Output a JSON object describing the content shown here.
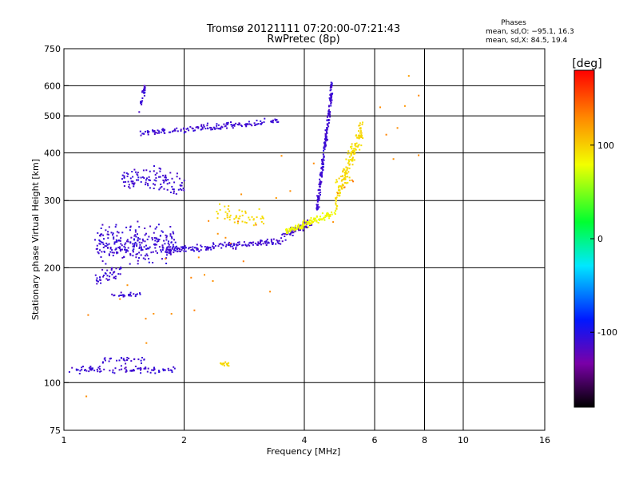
{
  "chart_data": {
    "type": "scatter",
    "title": "Tromsø 20121111 07:20:00-07:21:43",
    "subtitle": "RwPretec (8p)",
    "xlabel": "Frequency [MHz]",
    "ylabel": "Stationary phase Virtual Height [km]",
    "x_scale": "log",
    "y_scale": "log",
    "xlim": [
      1,
      16
    ],
    "ylim": [
      75,
      750
    ],
    "x_ticks": [
      1,
      2,
      4,
      6,
      8,
      10,
      16
    ],
    "y_ticks": [
      75,
      100,
      200,
      300,
      400,
      500,
      600,
      750
    ],
    "grid": true,
    "phase_stats": {
      "title": "Phases",
      "line_o": "mean, sd,O: −95.1, 16.3",
      "line_x": "mean, sd,X:  84.5, 19.4"
    },
    "colorbar": {
      "label": "[deg]",
      "range": [
        -180,
        180
      ],
      "ticks": [
        100,
        0,
        -100
      ]
    },
    "traces": [
      {
        "from": [
          1.03,
          108
        ],
        "to": [
          1.9,
          108
        ],
        "count": 90,
        "spread_y": 0.03,
        "phase": -110
      },
      {
        "from": [
          1.25,
          115
        ],
        "to": [
          1.6,
          115
        ],
        "count": 30,
        "spread_y": 0.03,
        "phase": -110
      },
      {
        "from": [
          1.2,
          185
        ],
        "to": [
          1.4,
          200
        ],
        "count": 40,
        "spread_y": 0.06,
        "phase": -110
      },
      {
        "from": [
          1.3,
          170
        ],
        "to": [
          1.55,
          170
        ],
        "count": 25,
        "spread_y": 0.02,
        "phase": -110
      },
      {
        "from": [
          1.2,
          230
        ],
        "to": [
          1.9,
          230
        ],
        "count": 260,
        "spread_y": 0.16,
        "phase": -110
      },
      {
        "from": [
          1.4,
          350
        ],
        "to": [
          2.0,
          330
        ],
        "count": 110,
        "spread_y": 0.1,
        "phase": -110
      },
      {
        "from": [
          1.55,
          450
        ],
        "to": [
          3.5,
          485
        ],
        "count": 150,
        "spread_y": 0.03,
        "phase": -110
      },
      {
        "from": [
          1.55,
          520
        ],
        "to": [
          1.6,
          600
        ],
        "count": 25,
        "spread_y": 0.05,
        "phase": -110
      },
      {
        "from": [
          1.8,
          222
        ],
        "to": [
          3.5,
          235
        ],
        "count": 160,
        "spread_y": 0.03,
        "phase": -110
      },
      {
        "from": [
          3.5,
          240
        ],
        "to": [
          4.2,
          265
        ],
        "count": 70,
        "spread_y": 0.04,
        "phase": -115
      },
      {
        "from": [
          4.3,
          280
        ],
        "to": [
          4.7,
          600
        ],
        "count": 220,
        "spread_y": 0.08,
        "phase": -110
      },
      {
        "from": [
          2.4,
          280
        ],
        "to": [
          3.2,
          265
        ],
        "count": 50,
        "spread_y": 0.08,
        "phase": 95
      },
      {
        "from": [
          2.45,
          112
        ],
        "to": [
          2.6,
          112
        ],
        "count": 15,
        "spread_y": 0.02,
        "phase": 95
      },
      {
        "from": [
          3.6,
          248
        ],
        "to": [
          4.8,
          280
        ],
        "count": 120,
        "spread_y": 0.03,
        "phase": 80
      },
      {
        "from": [
          4.8,
          300
        ],
        "to": [
          5.6,
          470
        ],
        "count": 160,
        "spread_y": 0.12,
        "phase": 95
      },
      {
        "from": [
          1.1,
          120
        ],
        "to": [
          9.7,
          560
        ],
        "count": 40,
        "spread_y": 0.5,
        "phase": 130
      }
    ]
  }
}
